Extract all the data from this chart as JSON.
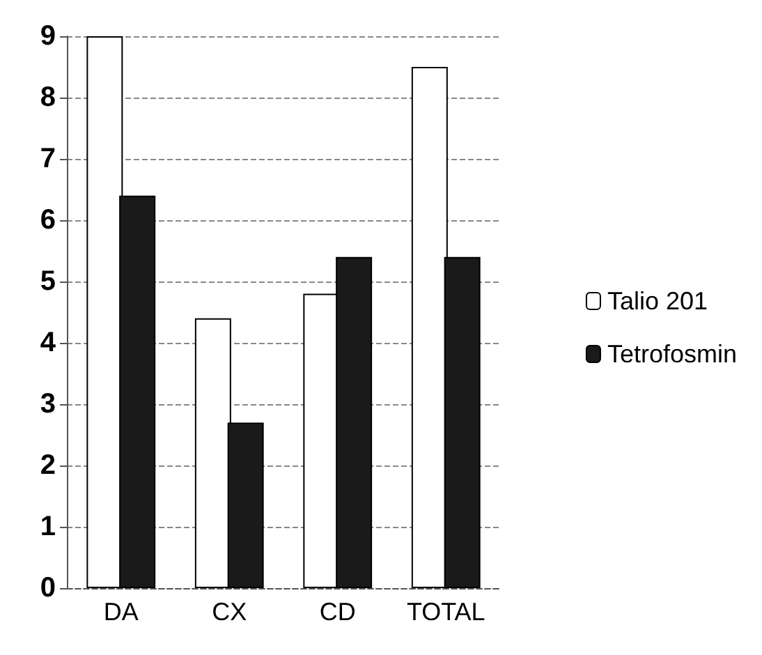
{
  "chart_data": {
    "type": "bar",
    "categories": [
      "DA",
      "CX",
      "CD",
      "TOTAL"
    ],
    "series": [
      {
        "name": "Talio 201",
        "color": "#ffffff",
        "values": [
          9,
          4.4,
          4.8,
          8.5
        ]
      },
      {
        "name": "Tetrofosmin",
        "color": "#1a1a1a",
        "values": [
          6.4,
          2.7,
          5.4,
          5.4
        ]
      }
    ],
    "ylim": [
      0,
      9
    ],
    "yticks": [
      0,
      1,
      2,
      3,
      4,
      5,
      6,
      7,
      8,
      9
    ],
    "grid": "y",
    "legend": "right"
  }
}
